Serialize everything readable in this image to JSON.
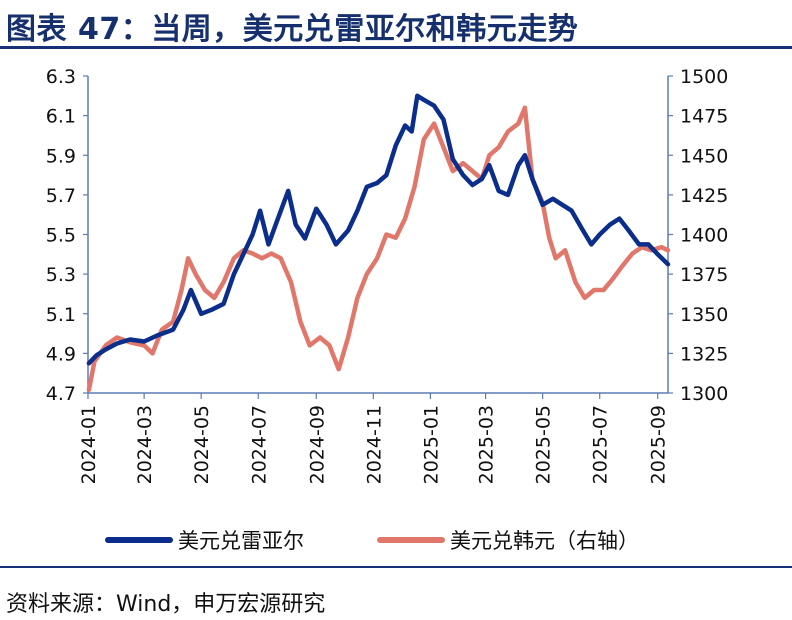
{
  "title": "图表 47：当周，美元兑雷亚尔和韩元走势",
  "source": "资料来源：Wind，申万宏源研究",
  "chart_data": {
    "type": "line",
    "title": "图表 47：当周，美元兑雷亚尔和韩元走势",
    "x_tick_labels": [
      "2024-01",
      "2024-03",
      "2024-05",
      "2024-07",
      "2024-09",
      "2024-11",
      "2025-01",
      "2025-03",
      "2025-05",
      "2025-07",
      "2025-09"
    ],
    "y_left": {
      "range": [
        4.7,
        6.3
      ],
      "ticks": [
        "4.7",
        "4.9",
        "5.1",
        "5.3",
        "5.5",
        "5.7",
        "5.9",
        "6.1",
        "6.3"
      ]
    },
    "y_right": {
      "range": [
        1300,
        1500
      ],
      "ticks": [
        "1300",
        "1325",
        "1350",
        "1375",
        "1400",
        "1425",
        "1450",
        "1475",
        "1500"
      ]
    },
    "x_range": [
      "2024-01-01",
      "2025-09-12"
    ],
    "legend": {
      "placement": "bottom"
    },
    "series": [
      {
        "name": "美元兑雷亚尔",
        "axis": "left",
        "color": "#0b2d8c",
        "points": [
          [
            "2024-01-02",
            4.85
          ],
          [
            "2024-01-10",
            4.89
          ],
          [
            "2024-01-20",
            4.92
          ],
          [
            "2024-02-01",
            4.95
          ],
          [
            "2024-02-15",
            4.97
          ],
          [
            "2024-03-01",
            4.96
          ],
          [
            "2024-03-15",
            4.99
          ],
          [
            "2024-04-01",
            5.02
          ],
          [
            "2024-04-12",
            5.12
          ],
          [
            "2024-04-20",
            5.22
          ],
          [
            "2024-05-01",
            5.1
          ],
          [
            "2024-05-12",
            5.12
          ],
          [
            "2024-05-25",
            5.15
          ],
          [
            "2024-06-05",
            5.3
          ],
          [
            "2024-06-15",
            5.4
          ],
          [
            "2024-06-25",
            5.5
          ],
          [
            "2024-07-03",
            5.62
          ],
          [
            "2024-07-12",
            5.45
          ],
          [
            "2024-07-22",
            5.58
          ],
          [
            "2024-08-02",
            5.72
          ],
          [
            "2024-08-10",
            5.55
          ],
          [
            "2024-08-20",
            5.48
          ],
          [
            "2024-09-01",
            5.63
          ],
          [
            "2024-09-12",
            5.55
          ],
          [
            "2024-09-22",
            5.45
          ],
          [
            "2024-10-05",
            5.52
          ],
          [
            "2024-10-15",
            5.62
          ],
          [
            "2024-10-25",
            5.74
          ],
          [
            "2024-11-05",
            5.76
          ],
          [
            "2024-11-15",
            5.8
          ],
          [
            "2024-11-25",
            5.95
          ],
          [
            "2024-12-05",
            6.05
          ],
          [
            "2024-12-12",
            6.02
          ],
          [
            "2024-12-18",
            6.2
          ],
          [
            "2024-12-25",
            6.18
          ],
          [
            "2025-01-05",
            6.15
          ],
          [
            "2025-01-15",
            6.08
          ],
          [
            "2025-01-25",
            5.88
          ],
          [
            "2025-02-05",
            5.8
          ],
          [
            "2025-02-15",
            5.75
          ],
          [
            "2025-02-25",
            5.78
          ],
          [
            "2025-03-05",
            5.85
          ],
          [
            "2025-03-15",
            5.72
          ],
          [
            "2025-03-25",
            5.7
          ],
          [
            "2025-04-05",
            5.85
          ],
          [
            "2025-04-12",
            5.9
          ],
          [
            "2025-04-20",
            5.78
          ],
          [
            "2025-05-01",
            5.65
          ],
          [
            "2025-05-12",
            5.68
          ],
          [
            "2025-05-22",
            5.65
          ],
          [
            "2025-06-01",
            5.62
          ],
          [
            "2025-06-12",
            5.53
          ],
          [
            "2025-06-22",
            5.45
          ],
          [
            "2025-07-01",
            5.5
          ],
          [
            "2025-07-12",
            5.55
          ],
          [
            "2025-07-22",
            5.58
          ],
          [
            "2025-08-01",
            5.52
          ],
          [
            "2025-08-12",
            5.45
          ],
          [
            "2025-08-22",
            5.45
          ],
          [
            "2025-09-01",
            5.4
          ],
          [
            "2025-09-12",
            5.35
          ]
        ]
      },
      {
        "name": "美元兑韩元（右轴）",
        "axis": "right",
        "color": "#e0776a",
        "points": [
          [
            "2024-01-02",
            1302
          ],
          [
            "2024-01-08",
            1320
          ],
          [
            "2024-01-20",
            1330
          ],
          [
            "2024-02-01",
            1335
          ],
          [
            "2024-02-15",
            1332
          ],
          [
            "2024-03-01",
            1330
          ],
          [
            "2024-03-10",
            1325
          ],
          [
            "2024-03-20",
            1340
          ],
          [
            "2024-04-01",
            1345
          ],
          [
            "2024-04-10",
            1365
          ],
          [
            "2024-04-17",
            1385
          ],
          [
            "2024-04-25",
            1375
          ],
          [
            "2024-05-05",
            1365
          ],
          [
            "2024-05-15",
            1360
          ],
          [
            "2024-05-25",
            1370
          ],
          [
            "2024-06-05",
            1385
          ],
          [
            "2024-06-15",
            1390
          ],
          [
            "2024-06-25",
            1388
          ],
          [
            "2024-07-05",
            1385
          ],
          [
            "2024-07-15",
            1388
          ],
          [
            "2024-07-25",
            1385
          ],
          [
            "2024-08-05",
            1370
          ],
          [
            "2024-08-15",
            1345
          ],
          [
            "2024-08-25",
            1330
          ],
          [
            "2024-09-05",
            1335
          ],
          [
            "2024-09-15",
            1330
          ],
          [
            "2024-09-25",
            1315
          ],
          [
            "2024-10-05",
            1335
          ],
          [
            "2024-10-15",
            1360
          ],
          [
            "2024-10-25",
            1375
          ],
          [
            "2024-11-05",
            1385
          ],
          [
            "2024-11-15",
            1400
          ],
          [
            "2024-11-25",
            1398
          ],
          [
            "2024-12-05",
            1410
          ],
          [
            "2024-12-15",
            1430
          ],
          [
            "2024-12-25",
            1460
          ],
          [
            "2025-01-05",
            1470
          ],
          [
            "2025-01-15",
            1455
          ],
          [
            "2025-01-25",
            1440
          ],
          [
            "2025-02-05",
            1445
          ],
          [
            "2025-02-15",
            1440
          ],
          [
            "2025-02-25",
            1435
          ],
          [
            "2025-03-05",
            1450
          ],
          [
            "2025-03-15",
            1455
          ],
          [
            "2025-03-25",
            1465
          ],
          [
            "2025-04-05",
            1470
          ],
          [
            "2025-04-12",
            1480
          ],
          [
            "2025-04-20",
            1435
          ],
          [
            "2025-05-01",
            1420
          ],
          [
            "2025-05-08",
            1398
          ],
          [
            "2025-05-15",
            1385
          ],
          [
            "2025-05-25",
            1390
          ],
          [
            "2025-06-05",
            1370
          ],
          [
            "2025-06-15",
            1360
          ],
          [
            "2025-06-25",
            1365
          ],
          [
            "2025-07-05",
            1365
          ],
          [
            "2025-07-15",
            1372
          ],
          [
            "2025-07-25",
            1380
          ],
          [
            "2025-08-05",
            1388
          ],
          [
            "2025-08-15",
            1392
          ],
          [
            "2025-08-25",
            1390
          ],
          [
            "2025-09-05",
            1392
          ],
          [
            "2025-09-12",
            1390
          ]
        ]
      }
    ]
  }
}
